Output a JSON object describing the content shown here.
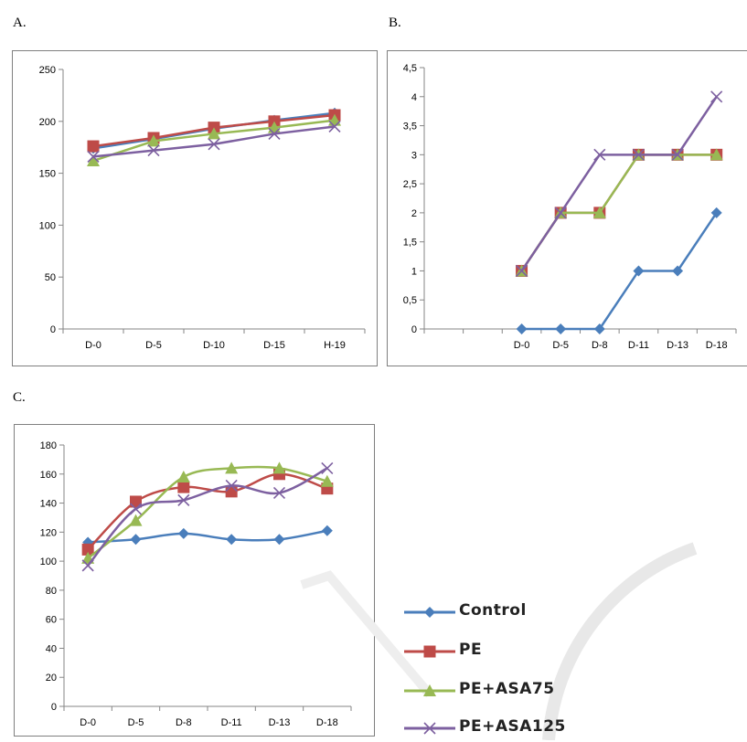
{
  "panels": [
    {
      "id": "A",
      "label": "A."
    },
    {
      "id": "B",
      "label": "B."
    },
    {
      "id": "C",
      "label": "C."
    }
  ],
  "series_style": [
    {
      "name": "Control",
      "color": "#4a7ebb",
      "marker": "diamond"
    },
    {
      "name": "PE",
      "color": "#be4b48",
      "marker": "square"
    },
    {
      "name": "PE+ASA75",
      "color": "#98b954",
      "marker": "triangle"
    },
    {
      "name": "PE+ASA125",
      "color": "#7d60a0",
      "marker": "x"
    }
  ],
  "legend": {
    "entries": [
      "Control",
      "PE",
      "PE+ASA75",
      "PE+ASA125"
    ]
  },
  "chart_data": [
    {
      "panel": "A",
      "type": "line",
      "categories": [
        "D-0",
        "D-5",
        "D-10",
        "D-15",
        "H-19"
      ],
      "yticks": [
        "0",
        "50",
        "100",
        "150",
        "200",
        "250"
      ],
      "ylim": [
        0,
        250
      ],
      "grid": false,
      "series": [
        {
          "name": "Control",
          "values": [
            174,
            183,
            193,
            201,
            208
          ]
        },
        {
          "name": "PE",
          "values": [
            176,
            184,
            194,
            200,
            206
          ]
        },
        {
          "name": "PE+ASA75",
          "values": [
            162,
            181,
            188,
            194,
            201
          ]
        },
        {
          "name": "PE+ASA125",
          "values": [
            166,
            172,
            178,
            188,
            195
          ]
        }
      ]
    },
    {
      "panel": "B",
      "type": "line",
      "categories": [
        "",
        "",
        "D-0",
        "D-5",
        "D-8",
        "D-11",
        "D-13",
        "D-18"
      ],
      "yticks": [
        "0",
        "0,5",
        "1",
        "1,5",
        "2",
        "2,5",
        "3",
        "3,5",
        "4",
        "4,5"
      ],
      "ylim": [
        0,
        4.5
      ],
      "grid": false,
      "series": [
        {
          "name": "Control",
          "values": [
            null,
            null,
            0,
            0,
            0,
            1,
            1,
            2
          ]
        },
        {
          "name": "PE",
          "values": [
            null,
            null,
            1,
            2,
            2,
            3,
            3,
            3
          ]
        },
        {
          "name": "PE+ASA75",
          "values": [
            null,
            null,
            1,
            2,
            2,
            3,
            3,
            3
          ]
        },
        {
          "name": "PE+ASA125",
          "values": [
            null,
            null,
            1,
            2,
            3,
            3,
            3,
            4
          ]
        }
      ]
    },
    {
      "panel": "C",
      "type": "line",
      "smooth": true,
      "categories": [
        "D-0",
        "D-5",
        "D-8",
        "D-11",
        "D-13",
        "D-18"
      ],
      "yticks": [
        "0",
        "20",
        "40",
        "60",
        "80",
        "100",
        "120",
        "140",
        "160",
        "180"
      ],
      "ylim": [
        0,
        180
      ],
      "grid": false,
      "legend_position": "right",
      "series": [
        {
          "name": "Control",
          "values": [
            113,
            115,
            119,
            115,
            115,
            121
          ]
        },
        {
          "name": "PE",
          "values": [
            108,
            141,
            151,
            148,
            160,
            150
          ]
        },
        {
          "name": "PE+ASA75",
          "values": [
            102,
            128,
            158,
            164,
            164,
            155
          ]
        },
        {
          "name": "PE+ASA125",
          "values": [
            97,
            136,
            142,
            152,
            147,
            164
          ]
        }
      ]
    }
  ]
}
